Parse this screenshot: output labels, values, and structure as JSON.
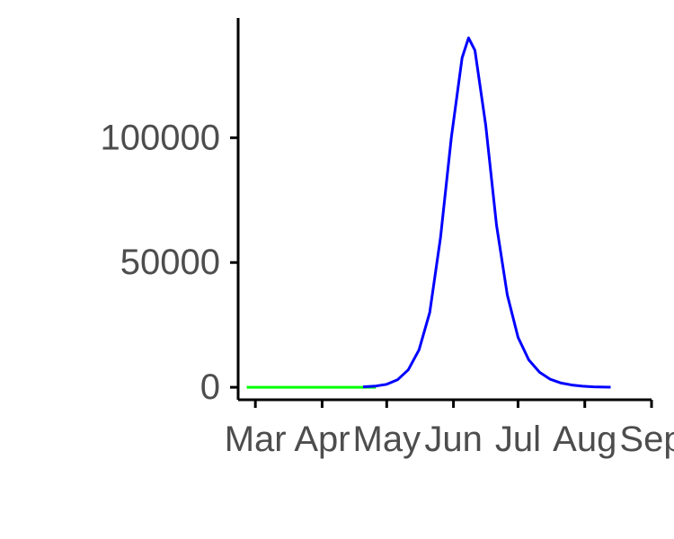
{
  "chart_data": {
    "type": "line",
    "title": "",
    "xlabel": "",
    "ylabel": "",
    "x_ticks": [
      {
        "label": "Mar",
        "date": "2020-03-01"
      },
      {
        "label": "Apr",
        "date": "2020-04-01"
      },
      {
        "label": "May",
        "date": "2020-05-01"
      },
      {
        "label": "Jun",
        "date": "2020-06-01"
      },
      {
        "label": "Jul",
        "date": "2020-07-01"
      },
      {
        "label": "Aug",
        "date": "2020-08-01"
      },
      {
        "label": "Sep",
        "date": "2020-09-01"
      }
    ],
    "y_ticks": [
      0,
      50000,
      100000
    ],
    "xlim": [
      "2020-02-22",
      "2020-09-01"
    ],
    "ylim": [
      -5000,
      148000
    ],
    "grid": false,
    "series": [
      {
        "color": "#00ff00",
        "points": [
          [
            "2020-02-26",
            0
          ],
          [
            "2020-03-15",
            0
          ],
          [
            "2020-04-01",
            0
          ],
          [
            "2020-04-15",
            0
          ],
          [
            "2020-04-26",
            0
          ]
        ]
      },
      {
        "color": "#0000ff",
        "points": [
          [
            "2020-04-20",
            200
          ],
          [
            "2020-04-26",
            500
          ],
          [
            "2020-05-01",
            1200
          ],
          [
            "2020-05-06",
            3000
          ],
          [
            "2020-05-11",
            7000
          ],
          [
            "2020-05-16",
            15000
          ],
          [
            "2020-05-21",
            30000
          ],
          [
            "2020-05-26",
            60000
          ],
          [
            "2020-05-31",
            100000
          ],
          [
            "2020-06-05",
            132000
          ],
          [
            "2020-06-08",
            140000
          ],
          [
            "2020-06-11",
            135000
          ],
          [
            "2020-06-16",
            105000
          ],
          [
            "2020-06-21",
            65000
          ],
          [
            "2020-06-26",
            37000
          ],
          [
            "2020-07-01",
            20000
          ],
          [
            "2020-07-06",
            11000
          ],
          [
            "2020-07-11",
            6000
          ],
          [
            "2020-07-16",
            3200
          ],
          [
            "2020-07-21",
            1700
          ],
          [
            "2020-07-26",
            900
          ],
          [
            "2020-07-31",
            450
          ],
          [
            "2020-08-05",
            200
          ],
          [
            "2020-08-10",
            80
          ],
          [
            "2020-08-13",
            30
          ]
        ]
      }
    ]
  }
}
